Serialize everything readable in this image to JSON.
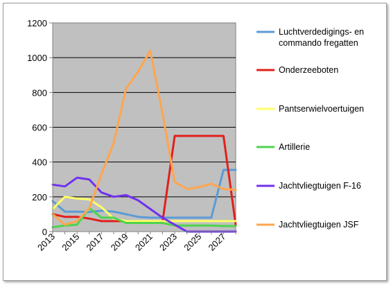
{
  "chart_data": {
    "type": "line",
    "title": "",
    "xlabel": "",
    "ylabel": "",
    "x": [
      2013,
      2014,
      2015,
      2016,
      2017,
      2018,
      2019,
      2020,
      2021,
      2022,
      2023,
      2024,
      2025,
      2026,
      2027,
      2028
    ],
    "ylim": [
      0,
      1200
    ],
    "yticks": [
      0,
      200,
      400,
      600,
      800,
      1000,
      1200
    ],
    "xticks": [
      2013,
      2015,
      2017,
      2019,
      2021,
      2023,
      2025,
      2027
    ],
    "grid": "horizontal",
    "background": "#c0c0c0",
    "legend_position": "right",
    "series": [
      {
        "name": "Luchtverdedigings- en commando fregatten",
        "color": "#5b9bd5",
        "values": [
          175,
          115,
          115,
          112,
          120,
          115,
          100,
          85,
          80,
          80,
          80,
          80,
          80,
          80,
          355,
          355
        ]
      },
      {
        "name": "Onderzeeboten",
        "color": "#e0201b",
        "values": [
          100,
          85,
          85,
          75,
          60,
          60,
          60,
          55,
          55,
          55,
          550,
          550,
          550,
          550,
          550,
          40
        ]
      },
      {
        "name": "Pantserwielvoertuigen",
        "color": "#ffff66",
        "values": [
          130,
          200,
          190,
          185,
          140,
          75,
          60,
          60,
          60,
          60,
          60,
          60,
          60,
          60,
          60,
          60
        ]
      },
      {
        "name": "Artillerie",
        "color": "#4cd44c",
        "values": [
          25,
          35,
          40,
          135,
          80,
          80,
          50,
          50,
          50,
          50,
          35,
          35,
          35,
          35,
          32,
          32
        ]
      },
      {
        "name": "Jachtvliegtuigen F-16",
        "color": "#7030f0",
        "values": [
          270,
          260,
          310,
          300,
          225,
          200,
          210,
          180,
          130,
          80,
          40,
          0,
          0,
          0,
          0,
          0
        ]
      },
      {
        "name": "Jachtvliegtuigen JSF",
        "color": "#ffa64d",
        "values": [
          100,
          40,
          60,
          135,
          330,
          510,
          820,
          920,
          1040,
          680,
          285,
          245,
          255,
          275,
          245,
          240
        ]
      }
    ]
  }
}
